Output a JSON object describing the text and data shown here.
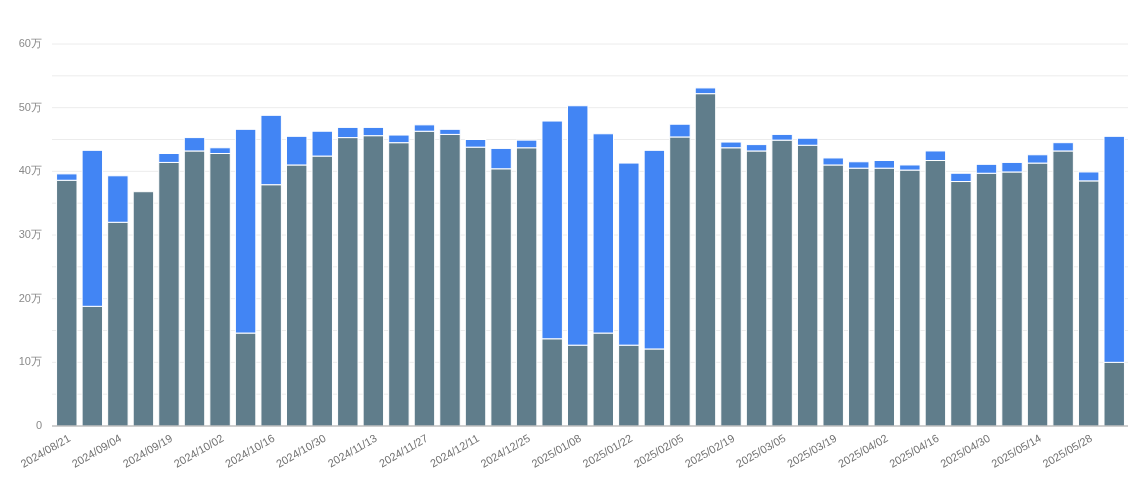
{
  "chart_data": {
    "type": "bar",
    "stacked": true,
    "categories": [
      "2024/08/21",
      null,
      "2024/09/04",
      null,
      "2024/09/19",
      null,
      "2024/10/02",
      null,
      "2024/10/16",
      null,
      "2024/10/30",
      null,
      "2024/11/13",
      null,
      "2024/11/27",
      null,
      "2024/12/11",
      null,
      "2024/12/25",
      null,
      "2025/01/08",
      null,
      "2025/01/22",
      null,
      "2025/02/05",
      null,
      "2025/02/19",
      null,
      "2025/03/05",
      null,
      "2025/03/19",
      null,
      "2025/04/02",
      null,
      "2025/04/16",
      null,
      "2025/04/30",
      null,
      "2025/05/14",
      null,
      "2025/05/28",
      null
    ],
    "series": [
      {
        "color": "#607d8b",
        "values": [
          38.6,
          18.8,
          32.0,
          36.8,
          41.4,
          43.2,
          42.8,
          14.6,
          37.9,
          41.0,
          42.4,
          45.3,
          45.6,
          44.5,
          46.3,
          45.8,
          43.8,
          40.4,
          43.7,
          13.7,
          12.7,
          14.6,
          12.7,
          12.1,
          45.4,
          52.2,
          43.7,
          43.2,
          44.9,
          44.1,
          41.0,
          40.5,
          40.5,
          40.2,
          41.7,
          38.4,
          39.7,
          39.9,
          41.3,
          43.2,
          38.5,
          10.0
        ]
      },
      {
        "color": "#4285f4",
        "values": [
          1.0,
          24.5,
          7.3,
          null,
          1.4,
          2.1,
          0.9,
          32.0,
          10.9,
          4.5,
          3.9,
          1.6,
          1.3,
          1.2,
          1.0,
          0.8,
          1.2,
          3.2,
          1.2,
          34.2,
          37.6,
          31.3,
          28.6,
          31.2,
          2.0,
          0.9,
          0.9,
          1.0,
          0.9,
          1.1,
          1.1,
          1.0,
          1.2,
          0.8,
          1.5,
          1.3,
          1.4,
          1.5,
          1.3,
          1.3,
          1.4,
          35.5
        ]
      }
    ],
    "ylim": [
      0,
      60
    ],
    "yticks": [
      0,
      {
        "value": 5,
        "label": null
      },
      {
        "value": 10,
        "label": "10万"
      },
      {
        "value": 15,
        "label": null
      },
      {
        "value": 20,
        "label": "20万"
      },
      {
        "value": 25,
        "label": null
      },
      {
        "value": 30,
        "label": "30万"
      },
      {
        "value": 35,
        "label": null
      },
      {
        "value": 40,
        "label": "40万"
      },
      {
        "value": 45,
        "label": null
      },
      {
        "value": 50,
        "label": "50万"
      },
      {
        "value": 55,
        "label": null
      },
      {
        "value": 60,
        "label": "60万"
      }
    ],
    "grid": "y"
  }
}
